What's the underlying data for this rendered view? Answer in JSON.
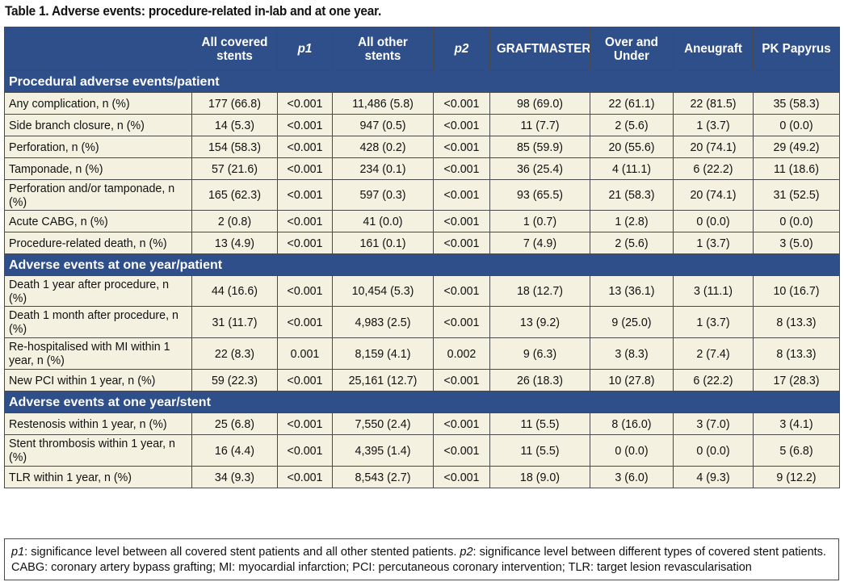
{
  "caption": "Table 1. Adverse events: procedure-related in-lab and at one year.",
  "headers": [
    "",
    "All covered stents",
    "p1",
    "All other stents",
    "p2",
    "GRAFTMASTER",
    "Over and Under",
    "Aneugraft",
    "PK Papyrus"
  ],
  "sections": [
    {
      "title": "Procedural adverse events/patient",
      "rows": [
        [
          "Any complication, n (%)",
          "177 (66.8)",
          "<0.001",
          "11,486 (5.8)",
          "<0.001",
          "98 (69.0)",
          "22 (61.1)",
          "22 (81.5)",
          "35 (58.3)"
        ],
        [
          "Side branch closure, n (%)",
          "14 (5.3)",
          "<0.001",
          "947 (0.5)",
          "<0.001",
          "11 (7.7)",
          "2 (5.6)",
          "1 (3.7)",
          "0 (0.0)"
        ],
        [
          "Perforation, n (%)",
          "154 (58.3)",
          "<0.001",
          "428 (0.2)",
          "<0.001",
          "85 (59.9)",
          "20 (55.6)",
          "20 (74.1)",
          "29 (49.2)"
        ],
        [
          "Tamponade, n (%)",
          "57 (21.6)",
          "<0.001",
          "234 (0.1)",
          "<0.001",
          "36 (25.4)",
          "4 (11.1)",
          "6 (22.2)",
          "11 (18.6)"
        ],
        [
          "Perforation and/or tamponade, n (%)",
          "165 (62.3)",
          "<0.001",
          "597 (0.3)",
          "<0.001",
          "93 (65.5)",
          "21 (58.3)",
          "20 (74.1)",
          "31 (52.5)"
        ],
        [
          "Acute CABG, n (%)",
          "2 (0.8)",
          "<0.001",
          "41 (0.0)",
          "<0.001",
          "1 (0.7)",
          "1 (2.8)",
          "0 (0.0)",
          "0 (0.0)"
        ],
        [
          "Procedure-related death, n (%)",
          "13 (4.9)",
          "<0.001",
          "161 (0.1)",
          "<0.001",
          "7 (4.9)",
          "2 (5.6)",
          "1 (3.7)",
          "3 (5.0)"
        ]
      ]
    },
    {
      "title": "Adverse events at one year/patient",
      "rows": [
        [
          "Death 1 year after procedure, n (%)",
          "44 (16.6)",
          "<0.001",
          "10,454 (5.3)",
          "<0.001",
          "18 (12.7)",
          "13 (36.1)",
          "3 (11.1)",
          "10 (16.7)"
        ],
        [
          "Death 1 month after procedure, n (%)",
          "31 (11.7)",
          "<0.001",
          "4,983 (2.5)",
          "<0.001",
          "13 (9.2)",
          "9 (25.0)",
          "1 (3.7)",
          "8 (13.3)"
        ],
        [
          "Re-hospitalised with MI within 1 year, n (%)",
          "22 (8.3)",
          "0.001",
          "8,159 (4.1)",
          "0.002",
          "9 (6.3)",
          "3 (8.3)",
          "2 (7.4)",
          "8 (13.3)"
        ],
        [
          "New PCI within 1 year, n (%)",
          "59 (22.3)",
          "<0.001",
          "25,161 (12.7)",
          "<0.001",
          "26 (18.3)",
          "10 (27.8)",
          "6 (22.2)",
          "17 (28.3)"
        ]
      ]
    },
    {
      "title": "Adverse events at one year/stent",
      "rows": [
        [
          "Restenosis within 1 year, n (%)",
          "25 (6.8)",
          "<0.001",
          "7,550 (2.4)",
          "<0.001",
          "11 (5.5)",
          "8 (16.0)",
          "3 (7.0)",
          "3 (4.1)"
        ],
        [
          "Stent thrombosis within 1 year, n (%)",
          "16 (4.4)",
          "<0.001",
          "4,395 (1.4)",
          "<0.001",
          "11 (5.5)",
          "0 (0.0)",
          "0 (0.0)",
          "5 (6.8)"
        ],
        [
          "TLR within 1 year, n (%)",
          "34 (9.3)",
          "<0.001",
          "8,543 (2.7)",
          "<0.001",
          "18 (9.0)",
          "3 (6.0)",
          "4 (9.3)",
          "9 (12.2)"
        ]
      ]
    }
  ],
  "footnote": {
    "p1_label": "p1",
    "p1_text": ": significance level between all covered stent patients and all other stented patients. ",
    "p2_label": "p2",
    "p2_text": ": significance level between different types of covered stent patients. CABG: coronary artery bypass grafting; MI: myocardial infarction; PCI: percutaneous coronary intervention; TLR: target lesion revascularisation"
  }
}
